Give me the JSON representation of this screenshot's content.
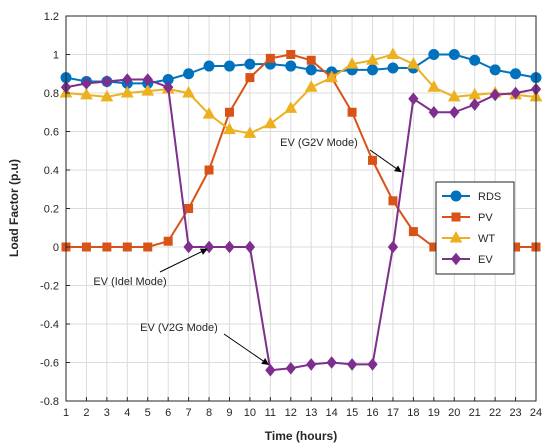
{
  "chart_data": {
    "type": "line",
    "title": "",
    "xlabel": "Time (hours)",
    "ylabel": "Load Factor (p.u)",
    "xlim": [
      1,
      24
    ],
    "ylim": [
      -0.8,
      1.2
    ],
    "xticks": [
      1,
      2,
      3,
      4,
      5,
      6,
      7,
      8,
      9,
      10,
      11,
      12,
      13,
      14,
      15,
      16,
      17,
      18,
      19,
      20,
      21,
      22,
      23,
      24
    ],
    "yticks": [
      -0.8,
      -0.6,
      -0.4,
      -0.2,
      0,
      0.2,
      0.4,
      0.6,
      0.8,
      1,
      1.2
    ],
    "grid": true,
    "legend_position": "right",
    "x": [
      1,
      2,
      3,
      4,
      5,
      6,
      7,
      8,
      9,
      10,
      11,
      12,
      13,
      14,
      15,
      16,
      17,
      18,
      19,
      20,
      21,
      22,
      23,
      24
    ],
    "series": [
      {
        "name": "RDS",
        "color": "#0072BD",
        "marker": "circle",
        "values": [
          0.88,
          0.86,
          0.86,
          0.85,
          0.85,
          0.87,
          0.9,
          0.94,
          0.94,
          0.95,
          0.95,
          0.94,
          0.92,
          0.91,
          0.92,
          0.92,
          0.93,
          0.93,
          1.0,
          1.0,
          0.97,
          0.92,
          0.9,
          0.88
        ]
      },
      {
        "name": "PV",
        "color": "#D95319",
        "marker": "square",
        "values": [
          0,
          0,
          0,
          0,
          0,
          0.03,
          0.2,
          0.4,
          0.7,
          0.88,
          0.98,
          1.0,
          0.97,
          0.88,
          0.7,
          0.45,
          0.24,
          0.08,
          0,
          0,
          0,
          0,
          0,
          0
        ]
      },
      {
        "name": "WT",
        "color": "#EDB120",
        "marker": "triangle",
        "values": [
          0.8,
          0.79,
          0.78,
          0.8,
          0.81,
          0.82,
          0.8,
          0.69,
          0.61,
          0.59,
          0.64,
          0.72,
          0.83,
          0.88,
          0.95,
          0.97,
          1.0,
          0.95,
          0.83,
          0.78,
          0.79,
          0.8,
          0.79,
          0.78
        ]
      },
      {
        "name": "EV",
        "color": "#7E2F8E",
        "marker": "diamond",
        "values": [
          0.83,
          0.85,
          0.86,
          0.87,
          0.87,
          0.83,
          0,
          0,
          0,
          0,
          -0.64,
          -0.63,
          -0.61,
          -0.6,
          -0.61,
          -0.61,
          0,
          0.77,
          0.7,
          0.7,
          0.74,
          0.79,
          0.8,
          0.82
        ]
      }
    ],
    "annotations": [
      {
        "text": "EV (G2V Mode)",
        "target": [
          17.5,
          0.38
        ]
      },
      {
        "text": "EV (Idel Mode)",
        "target": [
          8,
          0
        ]
      },
      {
        "text": "EV (V2G Mode)",
        "target": [
          11,
          -0.6
        ]
      }
    ]
  }
}
